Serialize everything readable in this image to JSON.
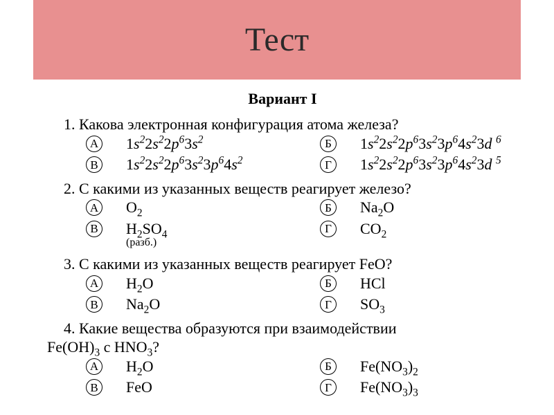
{
  "header": {
    "title": "Тест",
    "bg_color": "#e89090",
    "text_color": "#2a2a2a"
  },
  "variant": {
    "label": "Вариант  I"
  },
  "questions": [
    {
      "num": "1.",
      "text": "Какова электронная конфигурация атома железа?",
      "opts": {
        "a": "1s²2s²2p⁶3s²",
        "b": "1s²2s²2p⁶3s²3p⁶4s²3d ⁶",
        "c": "1s²2s²2p⁶3s²3p⁶4s²",
        "d": "1s²2s²2p⁶3s²3p⁶4s²3d ⁵"
      }
    },
    {
      "num": "2.",
      "text": "С какими из указанных веществ реагирует железо?",
      "opts": {
        "a": "O₂",
        "b": "Na₂O",
        "c": "H₂SO₄",
        "c_note": "(разб.)",
        "d": "CO₂"
      }
    },
    {
      "num": "3.",
      "text": "С какими из указанных веществ реагирует FeO?",
      "opts": {
        "a": "H₂O",
        "b": "HCl",
        "c": "Na₂O",
        "d": "SO₃"
      }
    },
    {
      "num": "4.",
      "text_line1": "Какие вещества образуются при взаимодействии",
      "text_line2": "Fe(OH)₃ с HNO₃?",
      "opts": {
        "a": "H₂O",
        "b": "Fe(NO₃)₂",
        "c": "FeO",
        "d": "Fe(NO₃)₃"
      }
    }
  ],
  "letters": {
    "a": "А",
    "b": "Б",
    "c": "В",
    "d": "Г"
  }
}
